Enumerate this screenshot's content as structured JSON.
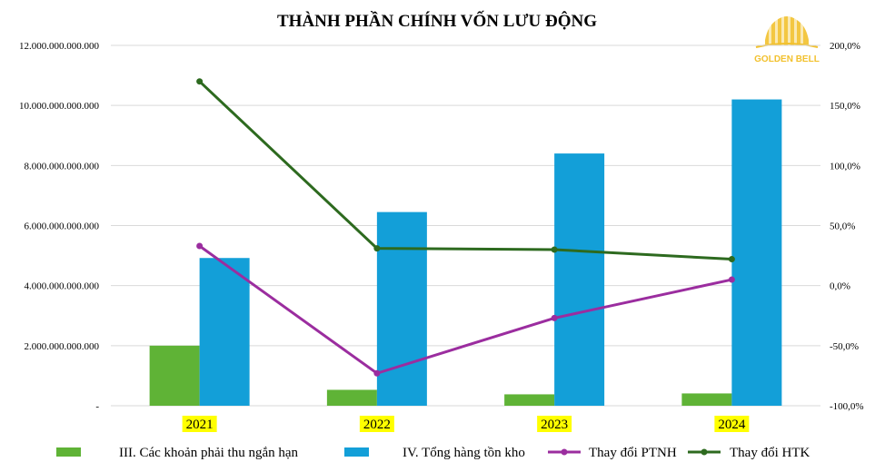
{
  "chart_data": {
    "type": "bar",
    "title": "THÀNH PHẦN CHÍNH VỐN LƯU ĐỘNG",
    "categories": [
      "2021",
      "2022",
      "2023",
      "2024"
    ],
    "ylim_left": [
      0,
      12000000000000
    ],
    "yticks_left": [
      {
        "value": 0,
        "label": "-"
      },
      {
        "value": 2000000000000,
        "label": "2.000.000.000.000"
      },
      {
        "value": 4000000000000,
        "label": "4.000.000.000.000"
      },
      {
        "value": 6000000000000,
        "label": "6.000.000.000.000"
      },
      {
        "value": 8000000000000,
        "label": "8.000.000.000.000"
      },
      {
        "value": 10000000000000,
        "label": "10.000.000.000.000"
      },
      {
        "value": 12000000000000,
        "label": "12.000.000.000.000"
      }
    ],
    "ylim_right": [
      -100,
      200
    ],
    "yticks_right": [
      {
        "value": -100,
        "label": "-100,0%"
      },
      {
        "value": -50,
        "label": "-50,0%"
      },
      {
        "value": 0,
        "label": "0,0%"
      },
      {
        "value": 50,
        "label": "50,0%"
      },
      {
        "value": 100,
        "label": "100,0%"
      },
      {
        "value": 150,
        "label": "150,0%"
      },
      {
        "value": 200,
        "label": "200,0%"
      }
    ],
    "bar_series": [
      {
        "name": "III. Các khoản phải thu ngắn hạn",
        "color": "#5fb336",
        "values": [
          2000000000000,
          530000000000,
          380000000000,
          410000000000
        ]
      },
      {
        "name": "IV. Tổng hàng tồn kho",
        "color": "#139fd8",
        "values": [
          4920000000000,
          6450000000000,
          8400000000000,
          10200000000000
        ]
      }
    ],
    "line_series": [
      {
        "name": "Thay đổi PTNH",
        "color": "#9b2d9f",
        "axis": "right",
        "values": [
          33,
          -73,
          -27,
          5
        ]
      },
      {
        "name": "Thay đổi HTK",
        "color": "#2d6a1f",
        "axis": "right",
        "values": [
          170,
          31,
          30,
          22
        ]
      }
    ],
    "grid": true,
    "legend_position": "bottom",
    "highlight_color": "#ffff00"
  },
  "logo": {
    "text": "GOLDEN BELL",
    "color": "#f2c12e"
  }
}
